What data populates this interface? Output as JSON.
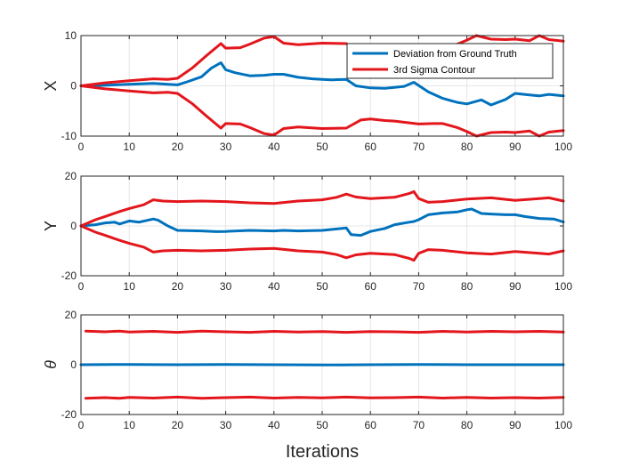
{
  "figure": {
    "xlabel": "Iterations"
  },
  "legend": {
    "entries": [
      {
        "label": "Deviation from Ground Truth",
        "color": "#0072BD"
      },
      {
        "label": "3rd Sigma Contour",
        "color": "#E3161C"
      }
    ]
  },
  "chart_data": [
    {
      "type": "line",
      "ylabel": "X",
      "xlim": [
        0,
        100
      ],
      "ylim": [
        -10,
        10
      ],
      "xticks": [
        "0",
        "10",
        "20",
        "30",
        "40",
        "50",
        "60",
        "70",
        "80",
        "90",
        "100"
      ],
      "yticks": [
        "10",
        "0",
        "-10"
      ],
      "grid": true,
      "legend": "top-right",
      "series": [
        {
          "name": "Deviation from Ground Truth",
          "color": "#0072BD",
          "x": [
            0,
            5,
            10,
            15,
            18,
            20,
            22,
            25,
            27,
            29,
            30,
            32,
            35,
            38,
            40,
            42,
            45,
            48,
            50,
            52,
            55,
            57,
            60,
            63,
            65,
            67,
            69,
            72,
            75,
            78,
            80,
            83,
            85,
            88,
            90,
            93,
            95,
            97,
            100
          ],
          "y": [
            0,
            0.1,
            0.3,
            0.5,
            0.3,
            0.2,
            0.8,
            1.8,
            3.5,
            4.6,
            3.2,
            2.6,
            2.0,
            2.1,
            2.3,
            2.3,
            1.7,
            1.4,
            1.3,
            1.2,
            1.3,
            0.0,
            -0.4,
            -0.5,
            -0.3,
            -0.1,
            0.7,
            -1.2,
            -2.5,
            -3.3,
            -3.6,
            -2.8,
            -3.8,
            -2.7,
            -1.5,
            -1.8,
            -2.0,
            -1.7,
            -2.0
          ]
        },
        {
          "name": "3rd Sigma Contour",
          "color": "#E3161C",
          "x": [
            0,
            5,
            10,
            15,
            18,
            20,
            23,
            26,
            29,
            30,
            33,
            35,
            38,
            40,
            42,
            45,
            50,
            55,
            58,
            60,
            63,
            65,
            70,
            73,
            75,
            78,
            80,
            82,
            85,
            88,
            90,
            93,
            95,
            97,
            100
          ],
          "y": [
            0,
            0.6,
            1.0,
            1.4,
            1.3,
            1.5,
            3.5,
            6.0,
            8.4,
            7.5,
            7.6,
            8.3,
            9.5,
            9.8,
            8.5,
            8.2,
            8.5,
            8.4,
            6.8,
            6.6,
            6.9,
            7.0,
            7.6,
            7.5,
            7.5,
            8.3,
            9.1,
            10.0,
            9.3,
            9.2,
            9.3,
            9.0,
            10.0,
            9.2,
            8.9
          ]
        },
        {
          "name": "3rd Sigma Contour",
          "color": "#E3161C",
          "x": [
            0,
            5,
            10,
            15,
            18,
            20,
            23,
            26,
            29,
            30,
            33,
            35,
            38,
            40,
            42,
            45,
            50,
            55,
            58,
            60,
            63,
            65,
            70,
            73,
            75,
            78,
            80,
            82,
            85,
            88,
            90,
            93,
            95,
            97,
            100
          ],
          "y": [
            0,
            -0.6,
            -1.0,
            -1.4,
            -1.3,
            -1.5,
            -3.5,
            -6.0,
            -8.4,
            -7.5,
            -7.6,
            -8.3,
            -9.5,
            -9.8,
            -8.5,
            -8.2,
            -8.5,
            -8.4,
            -6.8,
            -6.6,
            -6.9,
            -7.0,
            -7.6,
            -7.5,
            -7.5,
            -8.3,
            -9.1,
            -10.0,
            -9.3,
            -9.2,
            -9.3,
            -9.0,
            -10.0,
            -9.2,
            -8.9
          ]
        }
      ]
    },
    {
      "type": "line",
      "ylabel": "Y",
      "xlim": [
        0,
        100
      ],
      "ylim": [
        -20,
        20
      ],
      "xticks": [
        "0",
        "10",
        "20",
        "30",
        "40",
        "50",
        "60",
        "70",
        "80",
        "90",
        "100"
      ],
      "yticks": [
        "20",
        "0",
        "-20"
      ],
      "grid": true,
      "series": [
        {
          "name": "Deviation from Ground Truth",
          "color": "#0072BD",
          "x": [
            0,
            3,
            5,
            7,
            8,
            10,
            12,
            15,
            16,
            18,
            20,
            25,
            28,
            30,
            35,
            40,
            42,
            45,
            50,
            53,
            55,
            56,
            58,
            60,
            63,
            65,
            68,
            69,
            70,
            72,
            75,
            78,
            80,
            81,
            83,
            85,
            88,
            90,
            92,
            95,
            98,
            100
          ],
          "y": [
            0,
            0.5,
            1.2,
            1.5,
            0.8,
            2.0,
            1.5,
            2.8,
            2.3,
            0.0,
            -1.8,
            -2.0,
            -2.3,
            -2.2,
            -1.8,
            -2.0,
            -1.8,
            -2.0,
            -1.8,
            -1.2,
            -0.8,
            -3.5,
            -3.8,
            -2.2,
            -1.0,
            0.5,
            1.5,
            1.8,
            2.5,
            4.5,
            5.2,
            5.6,
            6.5,
            6.8,
            5.0,
            4.8,
            4.5,
            4.5,
            3.8,
            3.0,
            2.8,
            1.6
          ]
        },
        {
          "name": "3rd Sigma Contour",
          "color": "#E3161C",
          "x": [
            0,
            3,
            5,
            8,
            10,
            13,
            15,
            17,
            20,
            25,
            30,
            35,
            40,
            45,
            50,
            53,
            55,
            57,
            60,
            65,
            68,
            69,
            70,
            72,
            75,
            80,
            85,
            90,
            95,
            97,
            100
          ],
          "y": [
            0,
            2.5,
            3.8,
            5.8,
            7.0,
            8.5,
            10.5,
            10.0,
            9.8,
            10.0,
            9.8,
            9.3,
            9.0,
            10.0,
            10.5,
            11.5,
            12.8,
            11.6,
            11.0,
            11.5,
            13.0,
            13.8,
            11.0,
            9.5,
            9.8,
            10.8,
            11.3,
            10.3,
            11.0,
            11.3,
            10.0
          ]
        },
        {
          "name": "3rd Sigma Contour",
          "color": "#E3161C",
          "x": [
            0,
            3,
            5,
            8,
            10,
            13,
            15,
            17,
            20,
            25,
            30,
            35,
            40,
            45,
            50,
            53,
            55,
            57,
            60,
            65,
            68,
            69,
            70,
            72,
            75,
            80,
            85,
            90,
            95,
            97,
            100
          ],
          "y": [
            0,
            -2.5,
            -3.8,
            -5.8,
            -7.0,
            -8.5,
            -10.5,
            -10.0,
            -9.8,
            -10.0,
            -9.8,
            -9.3,
            -9.0,
            -10.0,
            -10.5,
            -11.5,
            -12.8,
            -11.6,
            -11.0,
            -11.5,
            -13.0,
            -13.8,
            -11.0,
            -9.5,
            -9.8,
            -10.8,
            -11.3,
            -10.3,
            -11.0,
            -11.3,
            -10.0
          ]
        }
      ]
    },
    {
      "type": "line",
      "ylabel": "θ",
      "xlim": [
        0,
        100
      ],
      "ylim": [
        -20,
        20
      ],
      "xticks": [
        "0",
        "10",
        "20",
        "30",
        "40",
        "50",
        "60",
        "70",
        "80",
        "90",
        "100"
      ],
      "yticks": [
        "20",
        "0",
        "-20"
      ],
      "grid": true,
      "series": [
        {
          "name": "Deviation from Ground Truth",
          "color": "#0072BD",
          "x": [
            0,
            10,
            20,
            30,
            40,
            50,
            60,
            70,
            80,
            90,
            100
          ],
          "y": [
            0,
            0.1,
            0,
            0.1,
            0,
            -0.1,
            0,
            0.1,
            0,
            0,
            0
          ]
        },
        {
          "name": "3rd Sigma Contour",
          "color": "#E3161C",
          "x": [
            1,
            5,
            8,
            10,
            15,
            20,
            25,
            30,
            35,
            40,
            45,
            50,
            55,
            60,
            65,
            70,
            75,
            80,
            85,
            90,
            95,
            100
          ],
          "y": [
            13.5,
            13.2,
            13.5,
            13.1,
            13.4,
            13.0,
            13.5,
            13.2,
            13.0,
            13.4,
            13.1,
            13.3,
            13.0,
            13.3,
            13.2,
            13.0,
            13.4,
            13.1,
            13.4,
            13.2,
            13.4,
            13.1
          ]
        },
        {
          "name": "3rd Sigma Contour",
          "color": "#E3161C",
          "x": [
            1,
            5,
            8,
            10,
            15,
            20,
            25,
            30,
            35,
            40,
            45,
            50,
            55,
            60,
            65,
            70,
            75,
            80,
            85,
            90,
            95,
            100
          ],
          "y": [
            -13.5,
            -13.2,
            -13.5,
            -13.1,
            -13.4,
            -13.0,
            -13.5,
            -13.2,
            -13.0,
            -13.4,
            -13.1,
            -13.3,
            -13.0,
            -13.3,
            -13.2,
            -13.0,
            -13.4,
            -13.1,
            -13.4,
            -13.2,
            -13.4,
            -13.1
          ]
        }
      ]
    }
  ]
}
